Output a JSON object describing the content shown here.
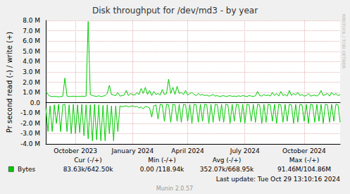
{
  "chart_data": {
    "type": "line",
    "title": "Disk throughput for /dev/md3 - by year",
    "y_label": "Pr second read (-) / write (+)",
    "categories": [
      null,
      null,
      null,
      null,
      null,
      null,
      null,
      null,
      null,
      null,
      null,
      null,
      null,
      null,
      "October 2023",
      null,
      null,
      null,
      null,
      null,
      null,
      null,
      null,
      null,
      null,
      null,
      null,
      null,
      null,
      null,
      null,
      null,
      null,
      null,
      null,
      null,
      null,
      null,
      null,
      null,
      null,
      "January 2024",
      null,
      null,
      null,
      null,
      null,
      null,
      null,
      null,
      null,
      null,
      null,
      null,
      null,
      null,
      null,
      null,
      null,
      null,
      null,
      null,
      null,
      null,
      null,
      null,
      null,
      "April 2024",
      null,
      null,
      null,
      null,
      null,
      null,
      null,
      null,
      null,
      null,
      null,
      null,
      null,
      null,
      null,
      null,
      null,
      null,
      null,
      null,
      null,
      null,
      null,
      null,
      null,
      null,
      "July 2024",
      null,
      null,
      null,
      null,
      null,
      null,
      null,
      null,
      null,
      null,
      null,
      null,
      null,
      null,
      null,
      null,
      null,
      null,
      null,
      null,
      null,
      null,
      null,
      null,
      null,
      null,
      null,
      "October 2024",
      null,
      null,
      null,
      null,
      null,
      null,
      null,
      null,
      null,
      null,
      null,
      null,
      null,
      null,
      null,
      null,
      null
    ],
    "series": [
      {
        "name": "Bytes",
        "color": "#00cc00",
        "values": [
          1100000,
          800000,
          650000,
          600000,
          620000,
          600000,
          580000,
          600000,
          620000,
          2400000,
          650000,
          600000,
          620000,
          640000,
          600000,
          620000,
          610000,
          640000,
          620000,
          650000,
          7900000,
          800000,
          700000,
          650000,
          620000,
          680000,
          600000,
          640000,
          700000,
          900000,
          1700000,
          800000,
          750000,
          700000,
          1000000,
          650000,
          700000,
          750000,
          1200000,
          700000,
          900000,
          800000,
          750000,
          1000000,
          800000,
          1400000,
          900000,
          1500000,
          800000,
          1200000,
          700000,
          1100000,
          800000,
          900000,
          750000,
          1300000,
          800000,
          900000,
          2300000,
          900000,
          1500000,
          800000,
          1600000,
          900000,
          1000000,
          800000,
          1200000,
          750000,
          900000,
          1000000,
          800000,
          700000,
          900000,
          750000,
          800000,
          700000,
          750000,
          650000,
          700000,
          800000,
          650000,
          700000,
          600000,
          650000,
          700000,
          600000,
          650000,
          700000,
          620000,
          650000,
          600000,
          680000,
          620000,
          700000,
          650000,
          600000,
          700000,
          650000,
          620000,
          680000,
          1100000,
          700000,
          650000,
          800000,
          700000,
          750000,
          650000,
          1000000,
          700000,
          900000,
          650000,
          1100000,
          700000,
          800000,
          650000,
          1200000,
          700000,
          900000,
          750000,
          1000000,
          700000,
          800000,
          650000,
          700000,
          900000,
          650000,
          700000,
          750000,
          650000,
          800000,
          1200000,
          700000,
          800000,
          900000,
          650000,
          1000000,
          750000,
          900000,
          700000,
          800000
        ],
        "read_values": [
          -500000,
          -2800000,
          -300000,
          -2800000,
          -200000,
          -2000000,
          -150000,
          -2800000,
          -200000,
          -150000,
          -2800000,
          -200000,
          -3000000,
          -150000,
          -3000000,
          -200000,
          -2900000,
          -150000,
          -3200000,
          -200000,
          -3500000,
          -200000,
          -3700000,
          -150000,
          -3600000,
          -200000,
          -3700000,
          -250000,
          -3700000,
          -200000,
          -3000000,
          -300000,
          -3700000,
          -300000,
          -2800000,
          -300000,
          -400000,
          -350000,
          -300000,
          -400000,
          -350000,
          -300000,
          -400000,
          -350000,
          -500000,
          -400000,
          -600000,
          -350000,
          -400000,
          -500000,
          -1400000,
          -300000,
          -200000,
          -1600000,
          -150000,
          -200000,
          -1800000,
          -150000,
          -200000,
          -1900000,
          -150000,
          -200000,
          -1800000,
          -150000,
          -1900000,
          -150000,
          -200000,
          -1800000,
          -150000,
          -2000000,
          -150000,
          -200000,
          -1900000,
          -150000,
          -1800000,
          -150000,
          -200000,
          -2000000,
          -150000,
          -1900000,
          -150000,
          -200000,
          -1800000,
          -150000,
          -1900000,
          -150000,
          -200000,
          -2000000,
          -150000,
          -1800000,
          -150000,
          -200000,
          -1900000,
          -150000,
          -2000000,
          -150000,
          -200000,
          -1800000,
          -150000,
          -1900000,
          -150000,
          -200000,
          -2000000,
          -150000,
          -1900000,
          -150000,
          -200000,
          -1800000,
          -150000,
          -2000000,
          -150000,
          -200000,
          -1900000,
          -150000,
          -1800000,
          -150000,
          -200000,
          -2000000,
          -150000,
          -1900000,
          -150000,
          -200000,
          -1800000,
          -150000,
          -2000000,
          -150000,
          -200000,
          -1900000,
          -150000,
          -1800000,
          -150000,
          -2000000,
          -150000,
          -200000,
          -1900000,
          -150000,
          -1800000,
          -150000,
          -200000,
          -1900000
        ]
      }
    ],
    "ylim": [
      -4000000,
      8000000
    ],
    "yticks": [
      {
        "value": -4000000,
        "label": "-4.0 M"
      },
      {
        "value": -3000000,
        "label": "-3.0 M"
      },
      {
        "value": -2000000,
        "label": "-2.0 M"
      },
      {
        "value": -1000000,
        "label": "-1.0 M"
      },
      {
        "value": 0,
        "label": "0.0"
      },
      {
        "value": 1000000,
        "label": "1.0 M"
      },
      {
        "value": 2000000,
        "label": "2.0 M"
      },
      {
        "value": 3000000,
        "label": "3.0 M"
      },
      {
        "value": 4000000,
        "label": "4.0 M"
      },
      {
        "value": 5000000,
        "label": "5.0 M"
      },
      {
        "value": 6000000,
        "label": "6.0 M"
      },
      {
        "value": 7000000,
        "label": "7.0 M"
      },
      {
        "value": 8000000,
        "label": "8.0 M"
      }
    ],
    "grid": true,
    "summary": {
      "columns": [
        "Cur (-/+)",
        "Min (-/+)",
        "Avg (-/+)",
        "Max (-/+)"
      ],
      "cells": [
        "83.63k/642.50k",
        "0.00 /118.94k",
        "352.07k/668.95k",
        "91.46M/104.86M"
      ]
    },
    "last_update": "Last update: Tue Oct 29 13:10:16 2024",
    "footer": "Munin 2.0.57",
    "watermark": "RRDTOOL / TOBI OETIKER"
  }
}
